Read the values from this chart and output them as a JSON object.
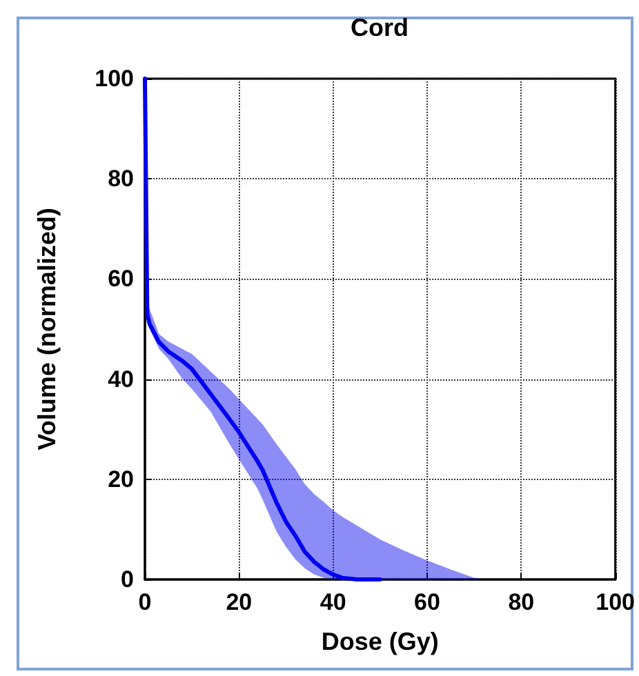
{
  "chart_data": {
    "type": "line",
    "title": "Cord",
    "xlabel": "Dose (Gy)",
    "ylabel": "Volume (normalized)",
    "xlim": [
      0,
      100
    ],
    "xticks": [
      0,
      20,
      40,
      60,
      80,
      100
    ],
    "ylim": [
      0,
      100
    ],
    "yticks": [
      0,
      20,
      40,
      60,
      80,
      100
    ],
    "grid": true,
    "marker": "none",
    "line_style": "solid",
    "series": [
      {
        "color": "#0000ee",
        "x": [
          0,
          0.5,
          1,
          3,
          5,
          8,
          10,
          14,
          18,
          20,
          24,
          25,
          28,
          30,
          32,
          34,
          36,
          38,
          40,
          42,
          45,
          50,
          55,
          60,
          65,
          70,
          72
        ],
        "values": [
          100,
          53,
          51,
          47.4,
          45.5,
          43.6,
          42,
          37,
          32,
          29.4,
          23.5,
          21.9,
          15.3,
          11.5,
          8.7,
          5.5,
          3.5,
          2,
          1,
          0.3,
          0,
          0,
          null,
          null,
          null,
          null,
          null
        ],
        "lower": [
          100,
          52,
          50,
          46,
          44,
          40,
          38,
          33.5,
          27,
          24,
          18,
          16,
          9.5,
          6.5,
          4,
          2.2,
          1,
          0.3,
          0,
          0,
          0,
          0,
          0,
          0,
          0,
          0,
          0
        ],
        "upper": [
          100,
          55,
          54,
          49,
          47.5,
          46,
          45,
          41.5,
          38,
          36,
          32,
          31,
          27,
          24.5,
          22,
          19,
          17,
          15.5,
          13.8,
          12.5,
          10.8,
          8,
          5.8,
          3.8,
          2,
          0.3,
          0
        ]
      }
    ]
  }
}
